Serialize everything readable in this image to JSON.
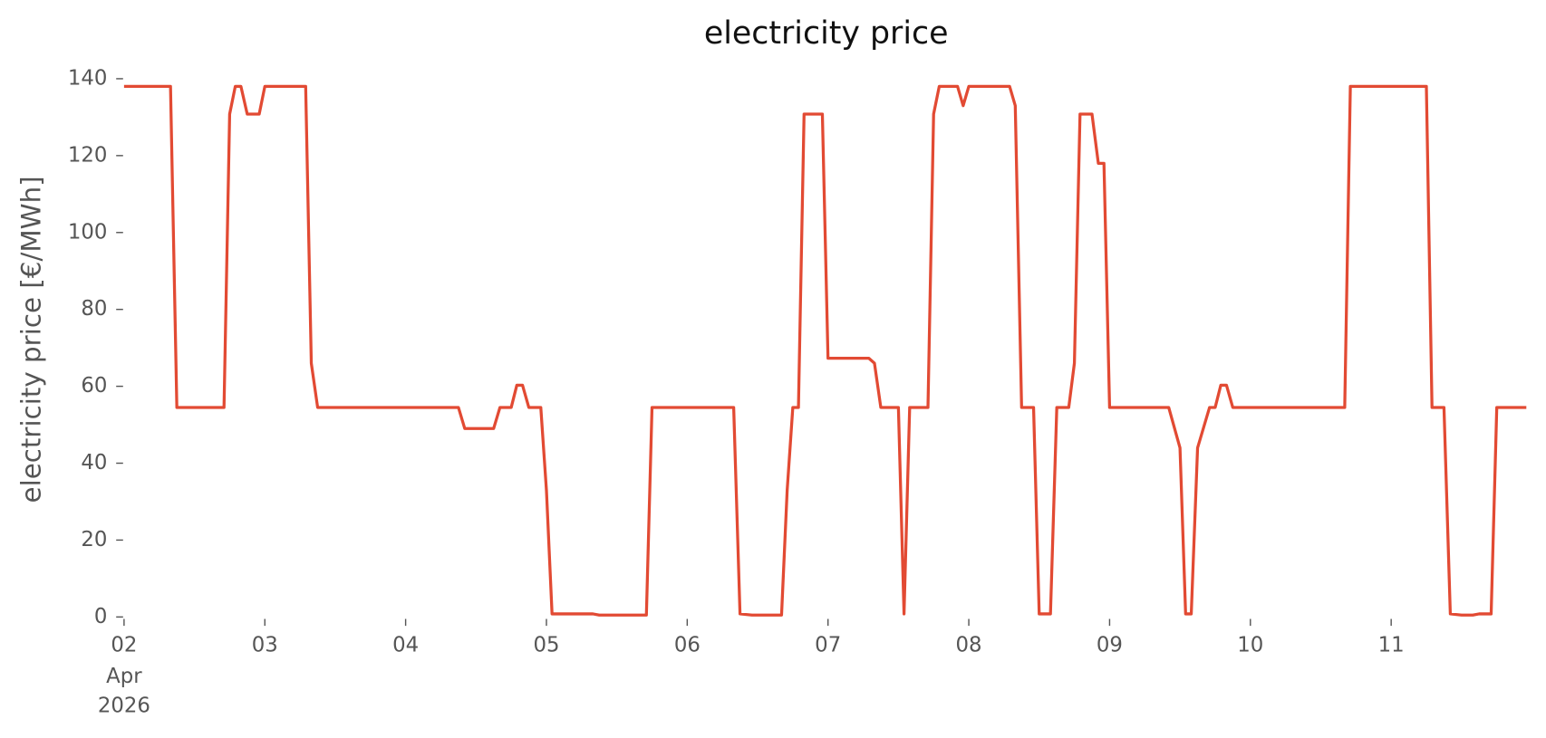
{
  "chart_data": {
    "type": "line",
    "title": "electricity price",
    "ylabel": "electricity price [€/MWh]",
    "color": "#E24A33",
    "x": [
      2.0,
      2.33,
      2.375,
      2.71,
      2.75,
      2.79,
      2.83,
      2.875,
      2.96,
      3.0,
      3.29,
      3.33,
      3.375,
      4.375,
      4.42,
      4.625,
      4.67,
      4.75,
      4.79,
      4.83,
      4.875,
      4.96,
      5.0,
      5.04,
      5.33,
      5.375,
      5.71,
      5.75,
      6.33,
      6.375,
      6.46,
      6.67,
      6.71,
      6.75,
      6.79,
      6.83,
      6.96,
      7.0,
      7.29,
      7.33,
      7.375,
      7.5,
      7.54,
      7.58,
      7.71,
      7.75,
      7.79,
      7.92,
      7.96,
      8.0,
      8.29,
      8.33,
      8.375,
      8.46,
      8.5,
      8.58,
      8.625,
      8.71,
      8.75,
      8.79,
      8.875,
      8.92,
      8.96,
      9.0,
      9.42,
      9.5,
      9.54,
      9.58,
      9.625,
      9.71,
      9.75,
      9.79,
      9.83,
      9.875,
      10.67,
      10.71,
      11.25,
      11.29,
      11.375,
      11.42,
      11.5,
      11.58,
      11.625,
      11.71,
      11.75,
      11.96
    ],
    "values": [
      138,
      138,
      54.5,
      54.5,
      130.8,
      138,
      138,
      130.8,
      130.8,
      138,
      138,
      66,
      54.5,
      54.5,
      49,
      49,
      54.5,
      54.5,
      60.3,
      60.3,
      54.5,
      54.5,
      33,
      0.8,
      0.8,
      0.5,
      0.5,
      54.5,
      54.5,
      0.8,
      0.5,
      0.5,
      33,
      54.5,
      54.5,
      130.8,
      130.8,
      67.3,
      67.3,
      66,
      54.5,
      54.5,
      0.8,
      54.5,
      54.5,
      130.8,
      138,
      138,
      133,
      138,
      138,
      133,
      54.5,
      54.5,
      0.8,
      0.8,
      54.5,
      54.5,
      66,
      130.8,
      130.8,
      118,
      118,
      54.5,
      54.5,
      44,
      0.8,
      0.8,
      44,
      54.5,
      54.5,
      60.3,
      60.3,
      54.5,
      54.5,
      138,
      138,
      54.5,
      54.5,
      0.8,
      0.5,
      0.5,
      0.8,
      0.8,
      54.5,
      54.5
    ],
    "xlim": [
      2,
      11.96
    ],
    "xticks": [
      {
        "value": 2,
        "label": "02"
      },
      {
        "value": 3,
        "label": "03"
      },
      {
        "value": 4,
        "label": "04"
      },
      {
        "value": 5,
        "label": "05"
      },
      {
        "value": 6,
        "label": "06"
      },
      {
        "value": 7,
        "label": "07"
      },
      {
        "value": 8,
        "label": "08"
      },
      {
        "value": 9,
        "label": "09"
      },
      {
        "value": 10,
        "label": "10"
      },
      {
        "value": 11,
        "label": "11"
      }
    ],
    "xtick_sublabels": [
      "Apr",
      "2026"
    ],
    "ylim": [
      0,
      140
    ],
    "yticks": [
      0,
      20,
      40,
      60,
      80,
      100,
      120,
      140
    ],
    "grid": false
  }
}
